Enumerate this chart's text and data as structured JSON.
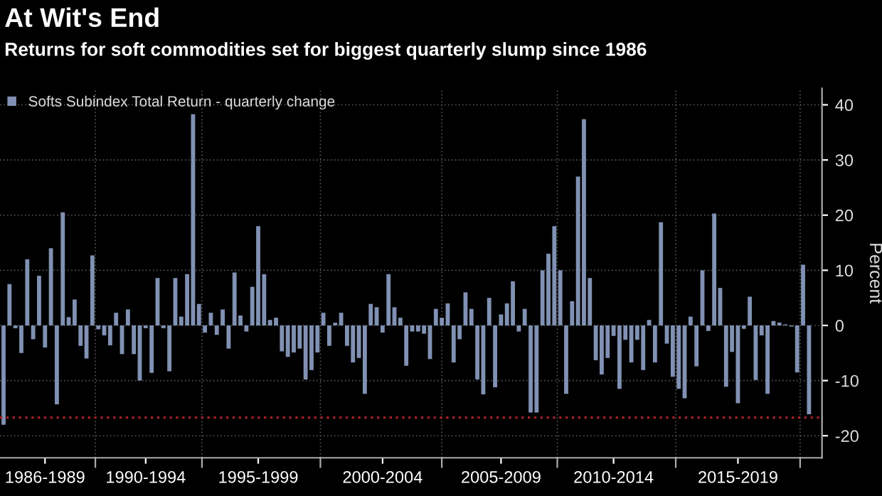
{
  "chart_data": {
    "type": "bar",
    "title": "At Wit's End",
    "subtitle": "Returns for soft commodities set for biggest quarterly slump since 1986",
    "ylabel": "Percent",
    "categories": [
      null,
      null,
      null,
      null,
      null,
      null,
      null,
      "1986-1989",
      null,
      null,
      null,
      null,
      null,
      null,
      null,
      null,
      null,
      null,
      null,
      null,
      null,
      null,
      null,
      null,
      "1990-1994",
      null,
      null,
      null,
      null,
      null,
      null,
      null,
      null,
      null,
      null,
      null,
      null,
      null,
      null,
      null,
      null,
      null,
      null,
      "1995-1999",
      null,
      null,
      null,
      null,
      null,
      null,
      null,
      null,
      null,
      null,
      null,
      null,
      null,
      null,
      null,
      null,
      null,
      null,
      null,
      null,
      "2000-2004",
      null,
      null,
      null,
      null,
      null,
      null,
      null,
      null,
      null,
      null,
      null,
      null,
      null,
      null,
      null,
      null,
      null,
      null,
      null,
      "2005-2009",
      null,
      null,
      null,
      null,
      null,
      null,
      null,
      null,
      null,
      null,
      null,
      null,
      null,
      null,
      null,
      null,
      null,
      null,
      "2010-2014",
      null,
      null,
      null,
      null,
      null,
      null,
      null,
      null,
      null,
      null,
      null,
      null,
      null,
      null,
      null,
      null,
      null,
      null,
      null,
      null,
      "2015-2019",
      null,
      null,
      null,
      null,
      null,
      null,
      null,
      null,
      null,
      null,
      null,
      null
    ],
    "series": [
      {
        "name": "Softs Subindex Total Return - quarterly change",
        "color": "#8091b3",
        "values": [
          -18,
          7.5,
          -0.5,
          -5,
          12,
          -2.5,
          9,
          -4,
          14,
          -14.3,
          20.5,
          1.5,
          4.7,
          -3.7,
          -6,
          12.7,
          -0.7,
          -1.8,
          -3.6,
          2.3,
          -5.2,
          2.9,
          -5.2,
          -10,
          -0.5,
          -8.6,
          8.6,
          -0.5,
          -8.3,
          8.6,
          1.6,
          9.3,
          38.3,
          3.9,
          -1.3,
          2.3,
          -1.7,
          2.9,
          -4.2,
          9.6,
          1.8,
          -1.1,
          7,
          18,
          9.3,
          1,
          1.4,
          -4.7,
          -5.7,
          -4.9,
          -4.2,
          -9.8,
          -8.1,
          -4.9,
          2.3,
          -3.7,
          0.5,
          2.3,
          -3.7,
          -6.7,
          -5.9,
          -12.4,
          3.9,
          3.3,
          -1.3,
          9.3,
          3.3,
          1.4,
          -7.3,
          -1.1,
          -1.1,
          -1.5,
          -6.1,
          3,
          1.4,
          4,
          -6.7,
          -2.5,
          6,
          3,
          -9.8,
          -12.5,
          5,
          -11.2,
          2,
          4,
          8,
          -1.1,
          3,
          -15.8,
          -15.8,
          10,
          13,
          18,
          10,
          -12.4,
          4.4,
          27,
          37.4,
          8.6,
          -6.3,
          -8.9,
          -5.9,
          -1.9,
          -11.5,
          -2.6,
          -6.7,
          -2.6,
          -8.1,
          1,
          -6.7,
          18.7,
          -3.3,
          -9.3,
          -11.5,
          -13.2,
          1.6,
          -7.4,
          10,
          -1,
          20.3,
          6.8,
          -11.1,
          -4.8,
          -14.1,
          -0.6,
          5.2,
          -9.9,
          -1.8,
          -12.4,
          0.8,
          0.5,
          0.2,
          -0.2,
          -8.5,
          11,
          -16.1
        ]
      }
    ],
    "ylim": [
      -24,
      43
    ],
    "yticks": [
      -20,
      -10,
      0,
      10,
      20,
      30,
      40
    ],
    "ref_lines": [
      {
        "axis": "y",
        "value": -16.7,
        "color": "#a3202a",
        "line_style": "dotted"
      }
    ],
    "grid": true,
    "legend": "top left"
  }
}
